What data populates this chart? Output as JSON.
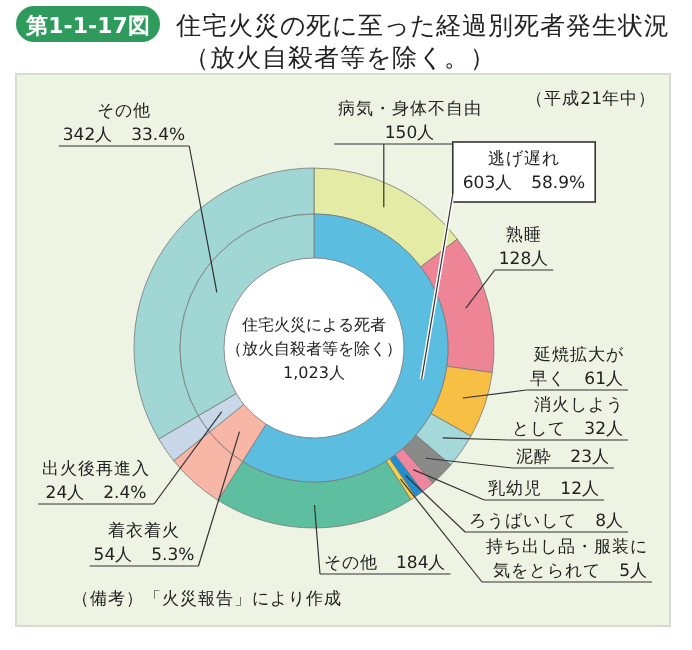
{
  "chart_data": [
    {
      "type": "donut",
      "title": "住宅火災の死に至った経過別死者発生状況（放火自殺者等を除く。）",
      "subtitle": "第1-1-17図",
      "categories": [
        "病気・身体不自由",
        "熟睡",
        "延焼拡大が早く",
        "消火しようとして",
        "泥酔",
        "乳幼児",
        "ろうばいして",
        "持ち出し品・服装に気をとられて",
        "その他",
        null,
        null,
        null
      ],
      "values": [
        150,
        128,
        61,
        32,
        23,
        12,
        8,
        5,
        184,
        54,
        24,
        342
      ],
      "value_labels": [
        "150人",
        "128人",
        "61人",
        "32人",
        "23人",
        "12人",
        "8人",
        "5人",
        "184人",
        null,
        null,
        null
      ],
      "colors": [
        "#e3eba4",
        "#ee8597",
        "#f8bf45",
        "#a5d8d8",
        "#8a8a88",
        "#ee86a0",
        "#1f8fd0",
        "#f5d04a",
        "#5dbf9f",
        "#f7b6a6",
        "#c8d8e8",
        "#a0d6d4"
      ],
      "annotations": [
        "（平成21年中）",
        "（備考）「火災報告」により作成"
      ]
    },
    {
      "type": "donut",
      "categories": [
        "逃げ遅れ",
        "着衣着火",
        "出火後再進入",
        "その他"
      ],
      "values": [
        603,
        54,
        24,
        342
      ],
      "value_labels": [
        "603人　58.9%",
        "54人　5.3%",
        "24人　2.4%",
        "342人　33.4%"
      ],
      "colors": [
        "#5bbde0",
        "#f7b6a6",
        "#c8d8e8",
        "#a0d6d4"
      ],
      "annotations": [
        "住宅火災による死者",
        "（放火自殺者等を除く）",
        "1,023人"
      ]
    }
  ]
}
